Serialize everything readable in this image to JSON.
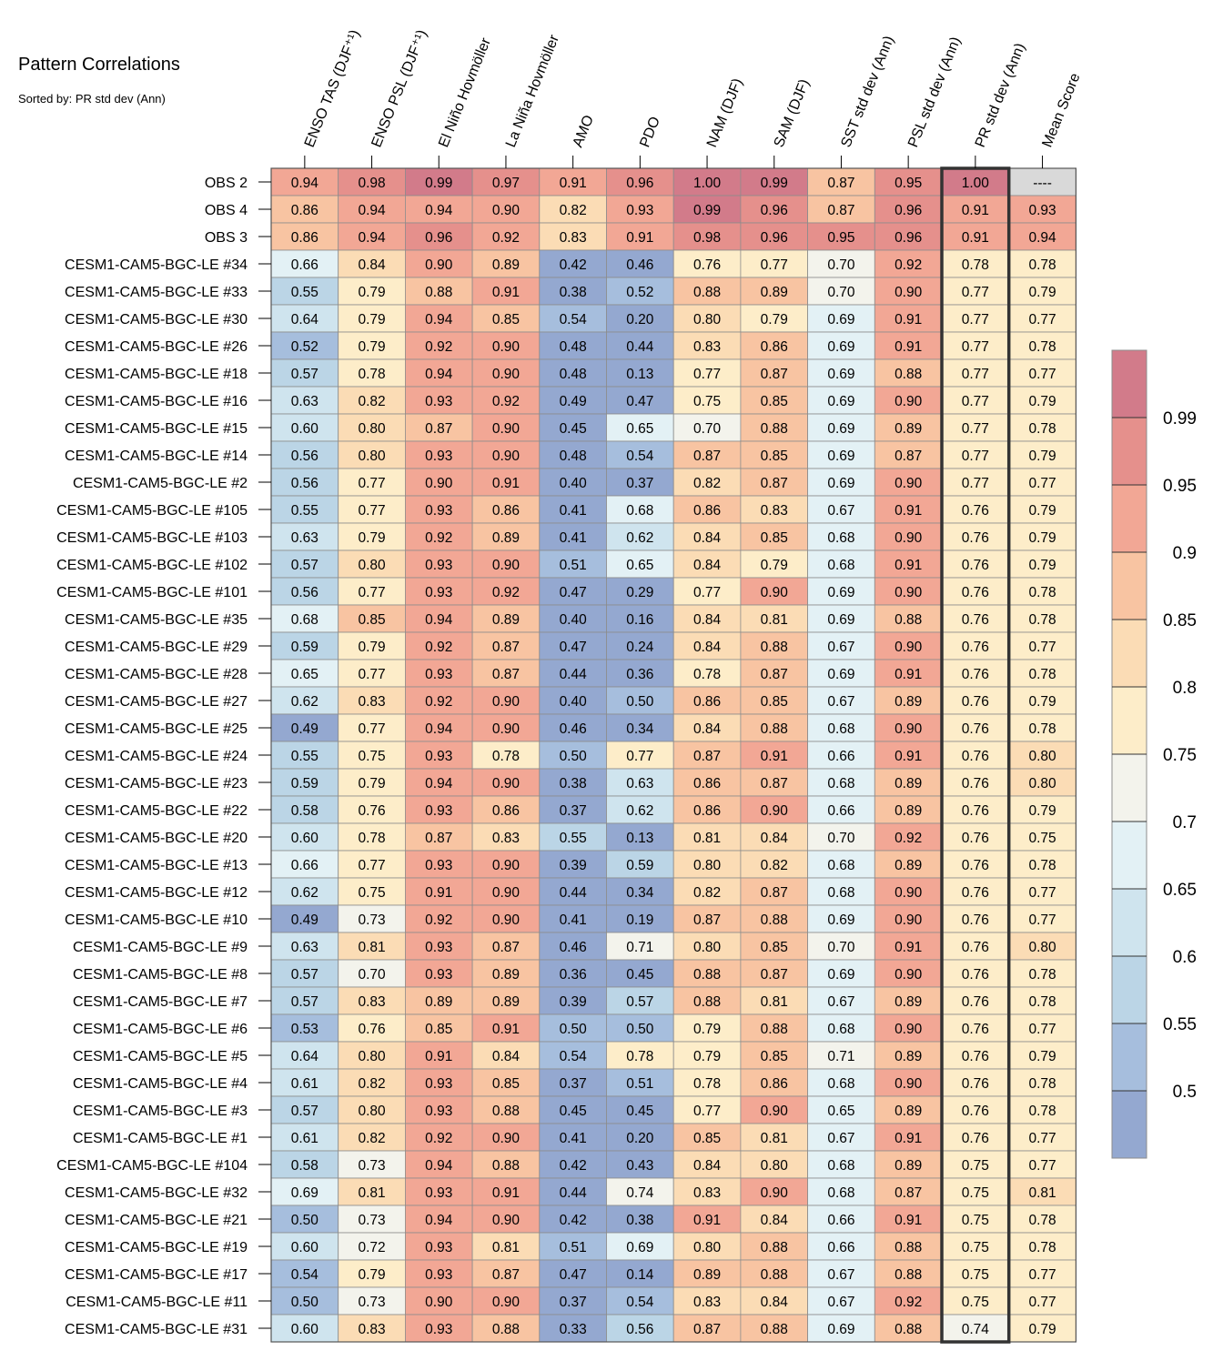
{
  "chart_data": {
    "type": "heatmap",
    "title": "Pattern Correlations",
    "subtitle": "Sorted by: PR std dev (Ann)",
    "columns": [
      "ENSO TAS (DJF⁺¹)",
      "ENSO PSL (DJF⁺¹)",
      "El Niño Hovmöller",
      "La Niña Hovmöller",
      "AMO",
      "PDO",
      "NAM (DJF)",
      "SAM (DJF)",
      "SST std dev (Ann)",
      "PSL std dev (Ann)",
      "PR std dev (Ann)",
      "Mean Score"
    ],
    "highlighted_column": "PR std dev (Ann)",
    "missing_marker": "----",
    "rows": [
      {
        "label": "OBS 2",
        "values": [
          "0.94",
          "0.98",
          "0.99",
          "0.97",
          "0.91",
          "0.96",
          "1.00",
          "0.99",
          "0.87",
          "0.95",
          "1.00",
          "----"
        ]
      },
      {
        "label": "OBS 4",
        "values": [
          "0.86",
          "0.94",
          "0.94",
          "0.90",
          "0.82",
          "0.93",
          "0.99",
          "0.96",
          "0.87",
          "0.96",
          "0.91",
          "0.93"
        ]
      },
      {
        "label": "OBS 3",
        "values": [
          "0.86",
          "0.94",
          "0.96",
          "0.92",
          "0.83",
          "0.91",
          "0.98",
          "0.96",
          "0.95",
          "0.96",
          "0.91",
          "0.94"
        ]
      },
      {
        "label": "CESM1-CAM5-BGC-LE #34",
        "values": [
          "0.66",
          "0.84",
          "0.90",
          "0.89",
          "0.42",
          "0.46",
          "0.76",
          "0.77",
          "0.70",
          "0.92",
          "0.78",
          "0.78"
        ]
      },
      {
        "label": "CESM1-CAM5-BGC-LE #33",
        "values": [
          "0.55",
          "0.79",
          "0.88",
          "0.91",
          "0.38",
          "0.52",
          "0.88",
          "0.89",
          "0.70",
          "0.90",
          "0.77",
          "0.79"
        ]
      },
      {
        "label": "CESM1-CAM5-BGC-LE #30",
        "values": [
          "0.64",
          "0.79",
          "0.94",
          "0.85",
          "0.54",
          "0.20",
          "0.80",
          "0.79",
          "0.69",
          "0.91",
          "0.77",
          "0.77"
        ]
      },
      {
        "label": "CESM1-CAM5-BGC-LE #26",
        "values": [
          "0.52",
          "0.79",
          "0.92",
          "0.90",
          "0.48",
          "0.44",
          "0.83",
          "0.86",
          "0.69",
          "0.91",
          "0.77",
          "0.78"
        ]
      },
      {
        "label": "CESM1-CAM5-BGC-LE #18",
        "values": [
          "0.57",
          "0.78",
          "0.94",
          "0.90",
          "0.48",
          "0.13",
          "0.77",
          "0.87",
          "0.69",
          "0.88",
          "0.77",
          "0.77"
        ]
      },
      {
        "label": "CESM1-CAM5-BGC-LE #16",
        "values": [
          "0.63",
          "0.82",
          "0.93",
          "0.92",
          "0.49",
          "0.47",
          "0.75",
          "0.85",
          "0.69",
          "0.90",
          "0.77",
          "0.79"
        ]
      },
      {
        "label": "CESM1-CAM5-BGC-LE #15",
        "values": [
          "0.60",
          "0.80",
          "0.87",
          "0.90",
          "0.45",
          "0.65",
          "0.70",
          "0.88",
          "0.69",
          "0.89",
          "0.77",
          "0.78"
        ]
      },
      {
        "label": "CESM1-CAM5-BGC-LE #14",
        "values": [
          "0.56",
          "0.80",
          "0.93",
          "0.90",
          "0.48",
          "0.54",
          "0.87",
          "0.85",
          "0.69",
          "0.87",
          "0.77",
          "0.79"
        ]
      },
      {
        "label": "CESM1-CAM5-BGC-LE #2",
        "values": [
          "0.56",
          "0.77",
          "0.90",
          "0.91",
          "0.40",
          "0.37",
          "0.82",
          "0.87",
          "0.69",
          "0.90",
          "0.77",
          "0.77"
        ]
      },
      {
        "label": "CESM1-CAM5-BGC-LE #105",
        "values": [
          "0.55",
          "0.77",
          "0.93",
          "0.86",
          "0.41",
          "0.68",
          "0.86",
          "0.83",
          "0.67",
          "0.91",
          "0.76",
          "0.79"
        ]
      },
      {
        "label": "CESM1-CAM5-BGC-LE #103",
        "values": [
          "0.63",
          "0.79",
          "0.92",
          "0.89",
          "0.41",
          "0.62",
          "0.84",
          "0.85",
          "0.68",
          "0.90",
          "0.76",
          "0.79"
        ]
      },
      {
        "label": "CESM1-CAM5-BGC-LE #102",
        "values": [
          "0.57",
          "0.80",
          "0.93",
          "0.90",
          "0.51",
          "0.65",
          "0.84",
          "0.79",
          "0.68",
          "0.91",
          "0.76",
          "0.79"
        ]
      },
      {
        "label": "CESM1-CAM5-BGC-LE #101",
        "values": [
          "0.56",
          "0.77",
          "0.93",
          "0.92",
          "0.47",
          "0.29",
          "0.77",
          "0.90",
          "0.69",
          "0.90",
          "0.76",
          "0.78"
        ]
      },
      {
        "label": "CESM1-CAM5-BGC-LE #35",
        "values": [
          "0.68",
          "0.85",
          "0.94",
          "0.89",
          "0.40",
          "0.16",
          "0.84",
          "0.81",
          "0.69",
          "0.88",
          "0.76",
          "0.78"
        ]
      },
      {
        "label": "CESM1-CAM5-BGC-LE #29",
        "values": [
          "0.59",
          "0.79",
          "0.92",
          "0.87",
          "0.47",
          "0.24",
          "0.84",
          "0.88",
          "0.67",
          "0.90",
          "0.76",
          "0.77"
        ]
      },
      {
        "label": "CESM1-CAM5-BGC-LE #28",
        "values": [
          "0.65",
          "0.77",
          "0.93",
          "0.87",
          "0.44",
          "0.36",
          "0.78",
          "0.87",
          "0.69",
          "0.91",
          "0.76",
          "0.78"
        ]
      },
      {
        "label": "CESM1-CAM5-BGC-LE #27",
        "values": [
          "0.62",
          "0.83",
          "0.92",
          "0.90",
          "0.40",
          "0.50",
          "0.86",
          "0.85",
          "0.67",
          "0.89",
          "0.76",
          "0.79"
        ]
      },
      {
        "label": "CESM1-CAM5-BGC-LE #25",
        "values": [
          "0.49",
          "0.77",
          "0.94",
          "0.90",
          "0.46",
          "0.34",
          "0.84",
          "0.88",
          "0.68",
          "0.90",
          "0.76",
          "0.78"
        ]
      },
      {
        "label": "CESM1-CAM5-BGC-LE #24",
        "values": [
          "0.55",
          "0.75",
          "0.93",
          "0.78",
          "0.50",
          "0.77",
          "0.87",
          "0.91",
          "0.66",
          "0.91",
          "0.76",
          "0.80"
        ]
      },
      {
        "label": "CESM1-CAM5-BGC-LE #23",
        "values": [
          "0.59",
          "0.79",
          "0.94",
          "0.90",
          "0.38",
          "0.63",
          "0.86",
          "0.87",
          "0.68",
          "0.89",
          "0.76",
          "0.80"
        ]
      },
      {
        "label": "CESM1-CAM5-BGC-LE #22",
        "values": [
          "0.58",
          "0.76",
          "0.93",
          "0.86",
          "0.37",
          "0.62",
          "0.86",
          "0.90",
          "0.66",
          "0.89",
          "0.76",
          "0.79"
        ]
      },
      {
        "label": "CESM1-CAM5-BGC-LE #20",
        "values": [
          "0.60",
          "0.78",
          "0.87",
          "0.83",
          "0.55",
          "0.13",
          "0.81",
          "0.84",
          "0.70",
          "0.92",
          "0.76",
          "0.75"
        ]
      },
      {
        "label": "CESM1-CAM5-BGC-LE #13",
        "values": [
          "0.66",
          "0.77",
          "0.93",
          "0.90",
          "0.39",
          "0.59",
          "0.80",
          "0.82",
          "0.68",
          "0.89",
          "0.76",
          "0.78"
        ]
      },
      {
        "label": "CESM1-CAM5-BGC-LE #12",
        "values": [
          "0.62",
          "0.75",
          "0.91",
          "0.90",
          "0.44",
          "0.34",
          "0.82",
          "0.87",
          "0.68",
          "0.90",
          "0.76",
          "0.77"
        ]
      },
      {
        "label": "CESM1-CAM5-BGC-LE #10",
        "values": [
          "0.49",
          "0.73",
          "0.92",
          "0.90",
          "0.41",
          "0.19",
          "0.87",
          "0.88",
          "0.69",
          "0.90",
          "0.76",
          "0.77"
        ]
      },
      {
        "label": "CESM1-CAM5-BGC-LE #9",
        "values": [
          "0.63",
          "0.81",
          "0.93",
          "0.87",
          "0.46",
          "0.71",
          "0.80",
          "0.85",
          "0.70",
          "0.91",
          "0.76",
          "0.80"
        ]
      },
      {
        "label": "CESM1-CAM5-BGC-LE #8",
        "values": [
          "0.57",
          "0.70",
          "0.93",
          "0.89",
          "0.36",
          "0.45",
          "0.88",
          "0.87",
          "0.69",
          "0.90",
          "0.76",
          "0.78"
        ]
      },
      {
        "label": "CESM1-CAM5-BGC-LE #7",
        "values": [
          "0.57",
          "0.83",
          "0.89",
          "0.89",
          "0.39",
          "0.57",
          "0.88",
          "0.81",
          "0.67",
          "0.89",
          "0.76",
          "0.78"
        ]
      },
      {
        "label": "CESM1-CAM5-BGC-LE #6",
        "values": [
          "0.53",
          "0.76",
          "0.85",
          "0.91",
          "0.50",
          "0.50",
          "0.79",
          "0.88",
          "0.68",
          "0.90",
          "0.76",
          "0.77"
        ]
      },
      {
        "label": "CESM1-CAM5-BGC-LE #5",
        "values": [
          "0.64",
          "0.80",
          "0.91",
          "0.84",
          "0.54",
          "0.78",
          "0.79",
          "0.85",
          "0.71",
          "0.89",
          "0.76",
          "0.79"
        ]
      },
      {
        "label": "CESM1-CAM5-BGC-LE #4",
        "values": [
          "0.61",
          "0.82",
          "0.93",
          "0.85",
          "0.37",
          "0.51",
          "0.78",
          "0.86",
          "0.68",
          "0.90",
          "0.76",
          "0.78"
        ]
      },
      {
        "label": "CESM1-CAM5-BGC-LE #3",
        "values": [
          "0.57",
          "0.80",
          "0.93",
          "0.88",
          "0.45",
          "0.45",
          "0.77",
          "0.90",
          "0.65",
          "0.89",
          "0.76",
          "0.78"
        ]
      },
      {
        "label": "CESM1-CAM5-BGC-LE #1",
        "values": [
          "0.61",
          "0.82",
          "0.92",
          "0.90",
          "0.41",
          "0.20",
          "0.85",
          "0.81",
          "0.67",
          "0.91",
          "0.76",
          "0.77"
        ]
      },
      {
        "label": "CESM1-CAM5-BGC-LE #104",
        "values": [
          "0.58",
          "0.73",
          "0.94",
          "0.88",
          "0.42",
          "0.43",
          "0.84",
          "0.80",
          "0.68",
          "0.89",
          "0.75",
          "0.77"
        ]
      },
      {
        "label": "CESM1-CAM5-BGC-LE #32",
        "values": [
          "0.69",
          "0.81",
          "0.93",
          "0.91",
          "0.44",
          "0.74",
          "0.83",
          "0.90",
          "0.68",
          "0.87",
          "0.75",
          "0.81"
        ]
      },
      {
        "label": "CESM1-CAM5-BGC-LE #21",
        "values": [
          "0.50",
          "0.73",
          "0.94",
          "0.90",
          "0.42",
          "0.38",
          "0.91",
          "0.84",
          "0.66",
          "0.91",
          "0.75",
          "0.78"
        ]
      },
      {
        "label": "CESM1-CAM5-BGC-LE #19",
        "values": [
          "0.60",
          "0.72",
          "0.93",
          "0.81",
          "0.51",
          "0.69",
          "0.80",
          "0.88",
          "0.66",
          "0.88",
          "0.75",
          "0.78"
        ]
      },
      {
        "label": "CESM1-CAM5-BGC-LE #17",
        "values": [
          "0.54",
          "0.79",
          "0.93",
          "0.87",
          "0.47",
          "0.14",
          "0.89",
          "0.88",
          "0.67",
          "0.88",
          "0.75",
          "0.77"
        ]
      },
      {
        "label": "CESM1-CAM5-BGC-LE #11",
        "values": [
          "0.50",
          "0.73",
          "0.90",
          "0.90",
          "0.37",
          "0.54",
          "0.83",
          "0.84",
          "0.67",
          "0.92",
          "0.75",
          "0.77"
        ]
      },
      {
        "label": "CESM1-CAM5-BGC-LE #31",
        "values": [
          "0.60",
          "0.83",
          "0.93",
          "0.88",
          "0.33",
          "0.56",
          "0.87",
          "0.88",
          "0.69",
          "0.88",
          "0.74",
          "0.79"
        ]
      }
    ],
    "colorbar": {
      "tick_labels": [
        "0.99",
        "0.95",
        "0.9",
        "0.85",
        "0.8",
        "0.75",
        "0.7",
        "0.65",
        "0.6",
        "0.55",
        "0.5"
      ],
      "bins": [
        {
          "min": 0.99,
          "max": 1.01,
          "color": "#D27B8A"
        },
        {
          "min": 0.95,
          "max": 0.99,
          "color": "#E5908C"
        },
        {
          "min": 0.9,
          "max": 0.95,
          "color": "#F2A795"
        },
        {
          "min": 0.85,
          "max": 0.9,
          "color": "#F8C4A2"
        },
        {
          "min": 0.8,
          "max": 0.85,
          "color": "#FBDCB5"
        },
        {
          "min": 0.75,
          "max": 0.8,
          "color": "#FDEDC9"
        },
        {
          "min": 0.7,
          "max": 0.75,
          "color": "#F3F3EC"
        },
        {
          "min": 0.65,
          "max": 0.7,
          "color": "#E3F1F5"
        },
        {
          "min": 0.6,
          "max": 0.65,
          "color": "#CFE4EE"
        },
        {
          "min": 0.55,
          "max": 0.6,
          "color": "#BBD5E6"
        },
        {
          "min": 0.5,
          "max": 0.55,
          "color": "#A6BEDD"
        },
        {
          "min": -1.0,
          "max": 0.5,
          "color": "#94A8D0"
        }
      ],
      "missing_color": "#D9D9D9"
    }
  }
}
